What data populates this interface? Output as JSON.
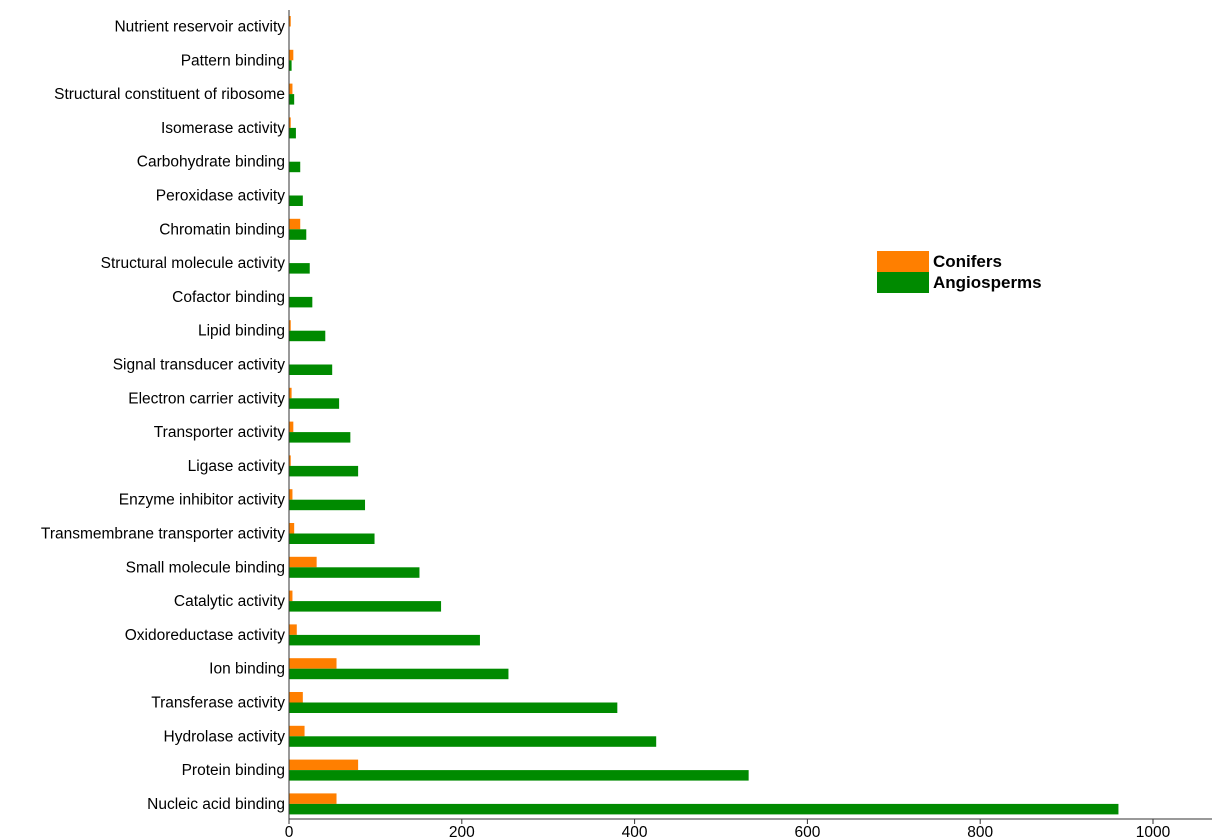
{
  "chart_data": {
    "type": "bar",
    "orientation": "horizontal",
    "title": "",
    "xlabel": "",
    "ylabel": "",
    "xlim": [
      0,
      1000
    ],
    "xticks": [
      0,
      200,
      400,
      600,
      800,
      1000
    ],
    "grid": false,
    "legend_position": "right",
    "categories": [
      "Nutrient reservoir activity",
      "Pattern binding",
      "Structural constituent of ribosome",
      "Isomerase activity",
      "Carbohydrate binding",
      "Peroxidase activity",
      "Chromatin binding",
      "Structural molecule activity",
      "Cofactor binding",
      "Lipid binding",
      "Signal transducer activity",
      "Electron carrier activity",
      "Transporter activity",
      "Ligase activity",
      "Enzyme inhibitor activity",
      "Transmembrane transporter activity",
      "Small molecule binding",
      "Catalytic activity",
      "Oxidoreductase activity",
      "Ion binding",
      "Transferase activity",
      "Hydrolase activity",
      "Protein binding",
      "Nucleic acid binding"
    ],
    "series": [
      {
        "name": "Conifers",
        "color": "#ff7f00",
        "values": [
          2,
          5,
          4,
          2,
          0,
          0,
          13,
          0,
          0,
          2,
          0,
          3,
          5,
          2,
          4,
          6,
          32,
          4,
          9,
          55,
          16,
          18,
          80,
          55
        ]
      },
      {
        "name": "Angiosperms",
        "color": "#008a00",
        "values": [
          0,
          3,
          6,
          8,
          13,
          16,
          20,
          24,
          27,
          42,
          50,
          58,
          71,
          80,
          88,
          99,
          151,
          176,
          221,
          254,
          380,
          425,
          532,
          960
        ]
      }
    ]
  }
}
